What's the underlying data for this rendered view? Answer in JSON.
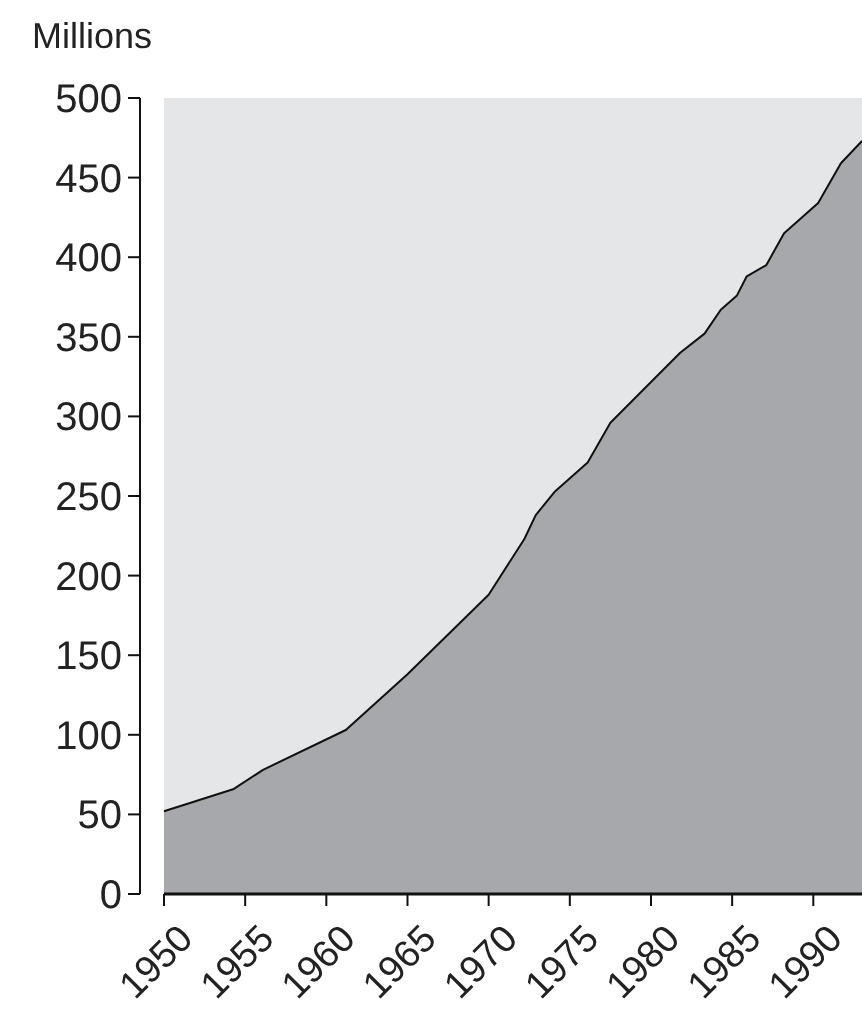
{
  "chart_data": {
    "type": "area",
    "ylabel": "Millions",
    "x": [
      1950,
      1954.3,
      1956.1,
      1961.2,
      1965,
      1970,
      1972.2,
      1972.9,
      1974.1,
      1976.1,
      1977.5,
      1981.8,
      1983.3,
      1984.3,
      1985.3,
      1985.9,
      1987.1,
      1988.2,
      1990.3,
      1991.7,
      1993
    ],
    "series": [
      {
        "color": "#a7a8ab",
        "values": [
          52,
          66,
          78,
          103,
          138,
          188,
          223,
          238,
          253,
          271,
          296,
          340,
          352,
          367,
          376,
          388,
          395,
          415,
          434,
          459,
          473
        ]
      }
    ],
    "xlim": [
      1950,
      1993
    ],
    "ylim": [
      0,
      500
    ],
    "xticks": [
      1950,
      1955,
      1960,
      1965,
      1970,
      1975,
      1980,
      1985,
      1990
    ],
    "yticks": [
      0,
      50,
      100,
      150,
      200,
      250,
      300,
      350,
      400,
      450,
      500
    ],
    "grid": false
  }
}
